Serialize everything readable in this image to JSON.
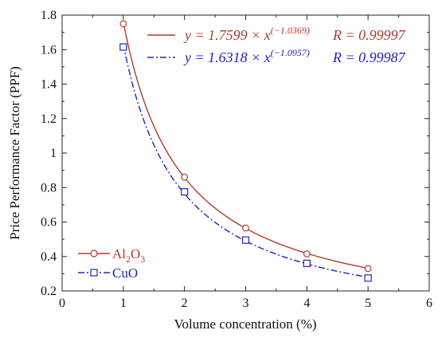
{
  "chart_data": {
    "type": "scatter",
    "xlabel": "Volume concentration (%)",
    "ylabel": "Price Performance Factor (PPF)",
    "xlim": [
      0,
      6
    ],
    "ylim": [
      0.2,
      1.8
    ],
    "x_ticks": [
      "0",
      "1",
      "2",
      "3",
      "4",
      "5",
      "6"
    ],
    "y_ticks": [
      "0.2",
      "0.4",
      "0.6",
      "0.8",
      "1",
      "1.2",
      "1.4",
      "1.6",
      "1.8"
    ],
    "legend_position": "bottom-left",
    "series": [
      {
        "name_main": "Al",
        "name_sub1": "2",
        "name_mid": "O",
        "name_sub2": "3",
        "color": "#b03a2e",
        "marker": "circle",
        "line": "solid",
        "x": [
          1,
          2,
          3,
          4,
          5
        ],
        "y": [
          1.75,
          0.86,
          0.565,
          0.415,
          0.33
        ],
        "fit": {
          "a": 1.7599,
          "b": -1.0369
        },
        "equation_main": "y = 1.7599 × x",
        "equation_exp": "(−1.0369)",
        "r_text": "R = 0.99997"
      },
      {
        "name_main": "CuO",
        "color": "#2323b4",
        "marker": "square",
        "line": "dashdot",
        "x": [
          1,
          2,
          3,
          4,
          5
        ],
        "y": [
          1.615,
          0.775,
          0.495,
          0.36,
          0.275
        ],
        "fit": {
          "a": 1.6318,
          "b": -1.0957
        },
        "equation_main": "y = 1.6318 × x",
        "equation_exp": "(−1.0957)",
        "r_text": "R = 0.99987"
      }
    ]
  }
}
